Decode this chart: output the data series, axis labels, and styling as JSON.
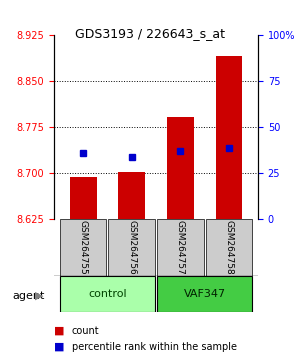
{
  "title": "GDS3193 / 226643_s_at",
  "samples": [
    "GSM264755",
    "GSM264756",
    "GSM264757",
    "GSM264758"
  ],
  "groups": [
    "control",
    "control",
    "VAF347",
    "VAF347"
  ],
  "group_names": [
    "control",
    "VAF347"
  ],
  "bar_bottom": 8.625,
  "bar_tops": [
    8.695,
    8.702,
    8.792,
    8.892
  ],
  "percentile_values": [
    8.733,
    8.727,
    8.737,
    8.742
  ],
  "ylim_left": [
    8.625,
    8.925
  ],
  "ylim_right": [
    0,
    100
  ],
  "yticks_left": [
    8.625,
    8.7,
    8.775,
    8.85,
    8.925
  ],
  "yticks_right": [
    0,
    25,
    50,
    75,
    100
  ],
  "bar_color": "#cc0000",
  "dot_color": "#0000cc",
  "control_color": "#aaffaa",
  "vaf_color": "#44cc44",
  "group_label_color_control": "#006600",
  "group_label_color_vaf": "#006600",
  "xlabel_color": "red",
  "ylabel_right_color": "blue",
  "grid_yticks": [
    8.7,
    8.775,
    8.85
  ],
  "legend_count_label": "count",
  "legend_pct_label": "percentile rank within the sample",
  "agent_label": "agent"
}
